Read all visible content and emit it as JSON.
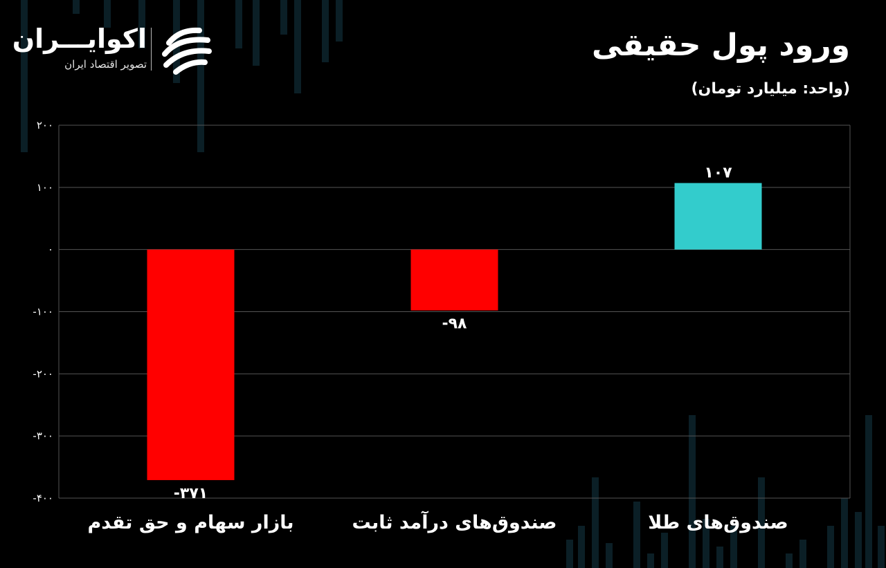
{
  "header": {
    "title": "ورود پول حقیقی",
    "unit": "(واحد: میلیارد تومان)"
  },
  "logo": {
    "name": "اکوایـــران",
    "tagline": "تصویر اقتصاد ایران",
    "icon": "ecoiran-swoosh-icon"
  },
  "colors": {
    "negative": "#ff0000",
    "positive": "#33cccc",
    "grid": "#555555",
    "background": "#000000"
  },
  "chart_data": {
    "type": "bar",
    "categories": [
      "بازار سهام و حق تقدم",
      "صندوق‌های درآمد ثابت",
      "صندوق‌های طلا"
    ],
    "values": [
      -371,
      -98,
      107
    ],
    "value_labels": [
      "-۳۷۱",
      "-۹۸",
      "۱۰۷"
    ],
    "ylim": [
      -400,
      200
    ],
    "yticks": [
      200,
      100,
      0,
      -100,
      -200,
      -300,
      -400
    ],
    "ytick_labels": [
      "۲۰۰",
      "۱۰۰",
      "۰",
      "-۱۰۰",
      "-۲۰۰",
      "-۳۰۰",
      "-۴۰۰"
    ],
    "grid": true,
    "legend": "none"
  }
}
